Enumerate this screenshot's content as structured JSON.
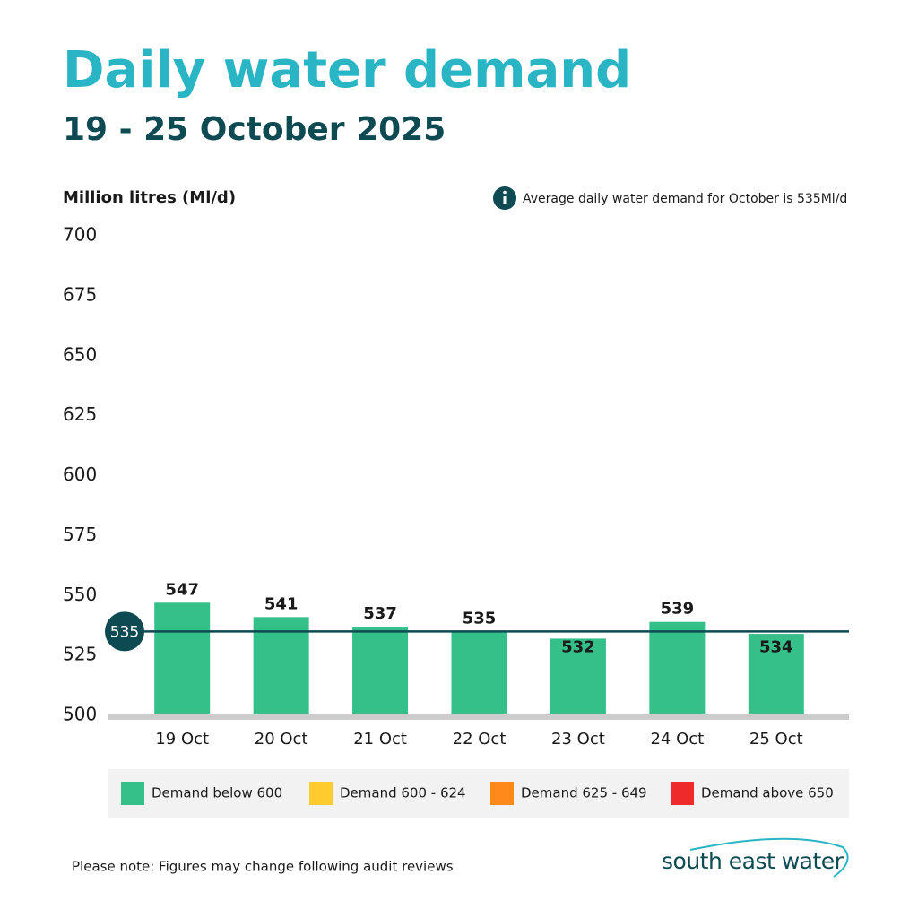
{
  "chart_data": {
    "type": "bar",
    "title": "Daily water demand",
    "subtitle": "19 - 25 October 2025",
    "y_label": "Million litres (Ml/d)",
    "annotation": "Average daily water demand for October is 535Ml/d",
    "categories": [
      "19 Oct",
      "20 Oct",
      "21 Oct",
      "22 Oct",
      "23 Oct",
      "24 Oct",
      "25 Oct"
    ],
    "values": [
      547,
      541,
      537,
      535,
      532,
      539,
      534
    ],
    "color": "#35c08a",
    "reference_line": {
      "value": 535,
      "color": "#0d4a52"
    },
    "ylim": [
      500,
      700
    ],
    "yticks": [
      500,
      525,
      550,
      575,
      600,
      625,
      650,
      675,
      700
    ],
    "grid": false,
    "legend_position": "bottom",
    "legend": [
      {
        "name": "Demand below 600",
        "color": "#35c08a"
      },
      {
        "name": "Demand 600 - 624",
        "color": "#ffcb2e"
      },
      {
        "name": "Demand 625 - 649",
        "color": "#ff8a1c"
      },
      {
        "name": "Demand above 650",
        "color": "#ee2a2a"
      }
    ],
    "footnote": "Please note: Figures may change following audit reviews",
    "logo": "south east water"
  }
}
